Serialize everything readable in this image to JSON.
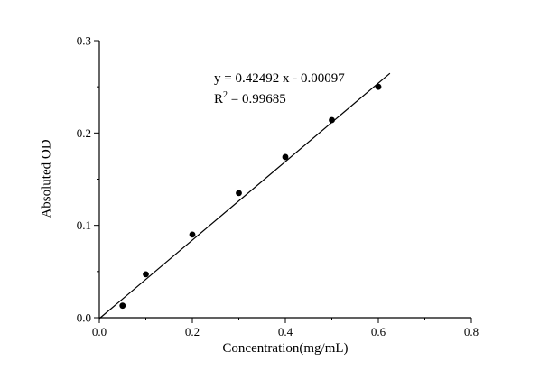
{
  "chart_data": {
    "type": "scatter",
    "title": "",
    "xlabel": "Concentration(mg/mL)",
    "ylabel": "Absoluted OD",
    "xlim": [
      0.0,
      0.8
    ],
    "ylim": [
      0.0,
      0.3
    ],
    "xticks": [
      0.0,
      0.2,
      0.4,
      0.6,
      0.8
    ],
    "xtick_labels": [
      "0.0",
      "0.2",
      "0.4",
      "0.6",
      "0.8"
    ],
    "xminor": [
      0.1,
      0.3,
      0.5,
      0.7
    ],
    "yticks": [
      0.0,
      0.1,
      0.2,
      0.3
    ],
    "ytick_labels": [
      "0.0",
      "0.1",
      "0.2",
      "0.3"
    ],
    "yminor": [
      0.05,
      0.15,
      0.25
    ],
    "points": [
      [
        0.05,
        0.013
      ],
      [
        0.1,
        0.047
      ],
      [
        0.2,
        0.09
      ],
      [
        0.3,
        0.135
      ],
      [
        0.4,
        0.174
      ],
      [
        0.5,
        0.214
      ],
      [
        0.6,
        0.25
      ]
    ],
    "fit": {
      "slope": 0.42492,
      "intercept": -0.00097,
      "x_range": [
        0.0,
        0.625
      ]
    },
    "annotation": {
      "equation": "y = 0.42492 x - 0.00097",
      "r_base": "R",
      "r_exponent": "2",
      "r_value": " = 0.99685"
    },
    "marker_color": "#000000",
    "line_color": "#000000",
    "axis_color": "#000000",
    "grid": false,
    "legend": "none"
  }
}
